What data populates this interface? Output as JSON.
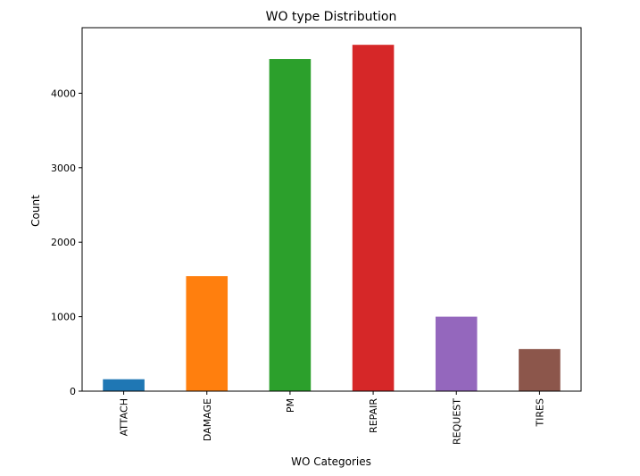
{
  "chart_data": {
    "type": "bar",
    "title": "WO type Distribution",
    "xlabel": "WO Categories",
    "ylabel": "Count",
    "categories": [
      "ATTACH",
      "DAMAGE",
      "PM",
      "REPAIR",
      "REQUEST",
      "TIRES"
    ],
    "values": [
      160,
      1545,
      4460,
      4650,
      1000,
      565
    ],
    "colors": [
      "#1f77b4",
      "#ff7f0e",
      "#2ca02c",
      "#d62728",
      "#9467bd",
      "#8c564b"
    ],
    "yticks": [
      0,
      1000,
      2000,
      3000,
      4000
    ],
    "ylim": [
      0,
      4880
    ],
    "grid": false,
    "legend": false
  }
}
